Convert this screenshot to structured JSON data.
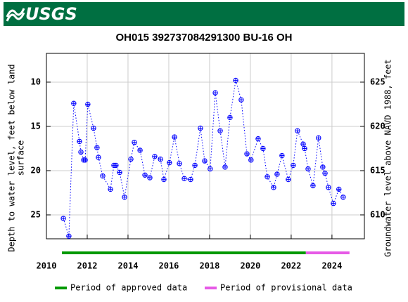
{
  "header": {
    "logo_text": "USGS"
  },
  "chart_data": {
    "type": "scatter",
    "title": "OH015 392737084291300 BU-16 OH",
    "ylabel": [
      "Depth to water level, feet below land",
      "surface"
    ],
    "y2label": "Groundwater level above NAVD 1988, feet",
    "xlim": [
      2010,
      2025.59
    ],
    "xticks": [
      2010,
      2012,
      2014,
      2016,
      2018,
      2020,
      2022,
      2024
    ],
    "ylim": [
      6.75,
      27.7
    ],
    "y_inverted": true,
    "yticks": [
      10,
      15,
      20,
      25
    ],
    "y2lim": [
      607.3,
      628.25
    ],
    "y2ticks": [
      610,
      615,
      620,
      625
    ],
    "grid": true,
    "x": [
      2010.83,
      2011.1,
      2011.34,
      2011.62,
      2011.69,
      2011.83,
      2011.9,
      2012.03,
      2012.31,
      2012.48,
      2012.55,
      2012.76,
      2013.14,
      2013.31,
      2013.41,
      2013.59,
      2013.83,
      2014.14,
      2014.31,
      2014.59,
      2014.83,
      2015.07,
      2015.31,
      2015.59,
      2015.76,
      2016.03,
      2016.28,
      2016.52,
      2016.76,
      2017.07,
      2017.28,
      2017.55,
      2017.76,
      2018.03,
      2018.28,
      2018.52,
      2018.76,
      2019.0,
      2019.28,
      2019.55,
      2019.83,
      2020.03,
      2020.38,
      2020.62,
      2020.83,
      2021.14,
      2021.31,
      2021.55,
      2021.86,
      2022.1,
      2022.31,
      2022.59,
      2022.66,
      2022.83,
      2023.07,
      2023.34,
      2023.55,
      2023.66,
      2023.83,
      2024.07,
      2024.34,
      2024.55
    ],
    "series": [
      {
        "color": "#0000ff",
        "values": [
          25.4,
          27.4,
          12.4,
          16.7,
          17.9,
          18.8,
          18.8,
          12.5,
          15.2,
          17.4,
          18.5,
          20.6,
          22.1,
          19.4,
          19.4,
          20.2,
          23.0,
          18.7,
          16.8,
          17.7,
          20.5,
          20.8,
          18.4,
          18.7,
          21.0,
          19.1,
          16.2,
          19.2,
          20.9,
          21.0,
          19.4,
          15.2,
          18.9,
          19.8,
          11.2,
          15.5,
          19.6,
          14.0,
          9.8,
          12.0,
          18.1,
          18.8,
          16.4,
          17.5,
          20.7,
          21.9,
          20.4,
          18.3,
          21.0,
          19.4,
          15.5,
          17.0,
          17.5,
          19.8,
          21.7,
          16.3,
          19.6,
          20.3,
          21.9,
          23.7,
          22.1,
          23.0
        ]
      }
    ],
    "periods": [
      {
        "name": "Period of approved data",
        "color": "#009900",
        "start": 2010.76,
        "end": 2022.72
      },
      {
        "name": "Period of provisional data",
        "color": "#e65ae6",
        "start": 2022.72,
        "end": 2024.86
      }
    ]
  }
}
